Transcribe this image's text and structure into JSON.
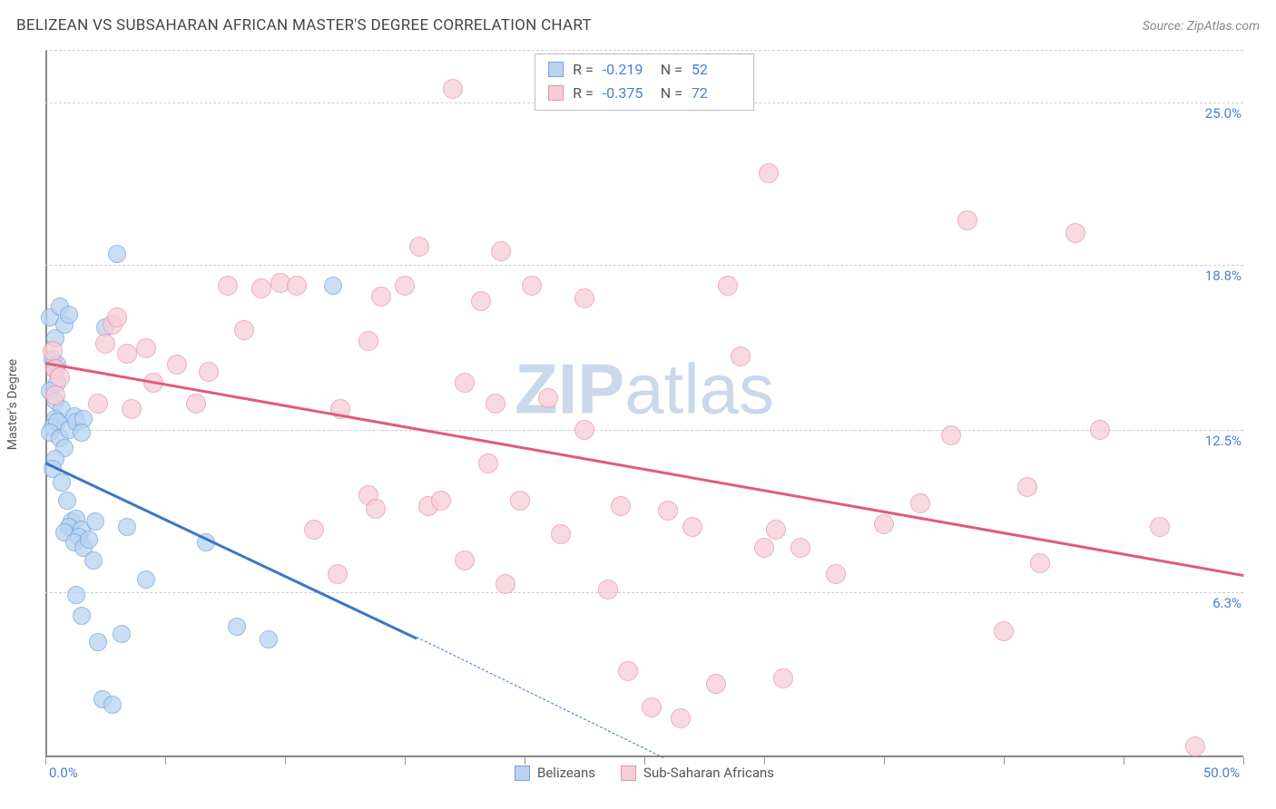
{
  "header": {
    "title": "BELIZEAN VS SUBSAHARAN AFRICAN MASTER'S DEGREE CORRELATION CHART",
    "source_prefix": "Source: ",
    "source_name": "ZipAtlas.com"
  },
  "y_axis": {
    "label": "Master's Degree"
  },
  "watermark": {
    "zip": "ZIP",
    "atlas": "atlas"
  },
  "chart": {
    "type": "scatter",
    "background_color": "#ffffff",
    "grid_color": "#cccccc",
    "axis_color": "#888888",
    "tick_label_color": "#4a7dd4",
    "xlim": [
      0,
      50
    ],
    "ylim": [
      0,
      27
    ],
    "x_ticks": [
      0,
      5,
      10,
      15,
      20,
      25,
      30,
      35,
      40,
      45,
      50
    ],
    "x_tick_labels": {
      "min": "0.0%",
      "max": "50.0%"
    },
    "y_gridlines": [
      {
        "v": 6.3,
        "label": "6.3%"
      },
      {
        "v": 12.5,
        "label": "12.5%"
      },
      {
        "v": 18.8,
        "label": "18.8%"
      },
      {
        "v": 25.0,
        "label": "25.0%"
      }
    ],
    "y_baseline": 0
  },
  "series": [
    {
      "key": "belizeans",
      "label": "Belizeans",
      "fill": "#b9d3f0",
      "stroke": "#6fa6e3",
      "marker_radius": 10,
      "marker_opacity": 0.75,
      "trend": {
        "color": "#3a76c8",
        "width": 2.5,
        "x1": 0,
        "y1": 11.3,
        "x2": 15.5,
        "y2": 4.6,
        "dash_ext_x": 25.8,
        "dash_ext_y": 0
      },
      "stats": {
        "R": "-0.219",
        "N": "52"
      },
      "points": [
        [
          0.2,
          16.8
        ],
        [
          0.4,
          16.0
        ],
        [
          0.6,
          17.2
        ],
        [
          0.8,
          16.5
        ],
        [
          0.3,
          15.2
        ],
        [
          0.4,
          14.8
        ],
        [
          0.5,
          15.0
        ],
        [
          0.5,
          14.3
        ],
        [
          0.2,
          14.0
        ],
        [
          0.4,
          13.6
        ],
        [
          0.7,
          13.3
        ],
        [
          0.4,
          12.9
        ],
        [
          0.3,
          12.6
        ],
        [
          0.5,
          12.8
        ],
        [
          0.2,
          12.4
        ],
        [
          0.6,
          12.2
        ],
        [
          1.0,
          12.5
        ],
        [
          1.2,
          13.0
        ],
        [
          1.3,
          12.8
        ],
        [
          1.6,
          12.9
        ],
        [
          1.5,
          12.4
        ],
        [
          0.8,
          11.8
        ],
        [
          0.4,
          11.4
        ],
        [
          0.3,
          11.0
        ],
        [
          0.7,
          10.5
        ],
        [
          0.9,
          9.8
        ],
        [
          1.1,
          9.0
        ],
        [
          1.3,
          9.1
        ],
        [
          1.0,
          8.8
        ],
        [
          0.8,
          8.6
        ],
        [
          1.5,
          8.7
        ],
        [
          1.4,
          8.4
        ],
        [
          1.2,
          8.2
        ],
        [
          1.6,
          8.0
        ],
        [
          1.8,
          8.3
        ],
        [
          2.1,
          9.0
        ],
        [
          3.4,
          8.8
        ],
        [
          2.0,
          7.5
        ],
        [
          4.2,
          6.8
        ],
        [
          1.3,
          6.2
        ],
        [
          1.5,
          5.4
        ],
        [
          2.2,
          4.4
        ],
        [
          8.0,
          5.0
        ],
        [
          6.7,
          8.2
        ],
        [
          3.0,
          19.2
        ],
        [
          2.5,
          16.4
        ],
        [
          2.4,
          2.2
        ],
        [
          2.8,
          2.0
        ],
        [
          3.2,
          4.7
        ],
        [
          9.3,
          4.5
        ],
        [
          12.0,
          18.0
        ],
        [
          1.0,
          16.9
        ]
      ]
    },
    {
      "key": "subsaharan",
      "label": "Sub-Saharan Africans",
      "fill": "#f7cdd7",
      "stroke": "#e693a7",
      "marker_radius": 11,
      "marker_opacity": 0.75,
      "trend": {
        "color": "#e15a7a",
        "width": 2.5,
        "x1": 0,
        "y1": 15.1,
        "x2": 50,
        "y2": 7.0
      },
      "stats": {
        "R": "-0.375",
        "N": "72"
      },
      "points": [
        [
          0.3,
          15.5
        ],
        [
          0.4,
          14.8
        ],
        [
          0.6,
          14.5
        ],
        [
          0.4,
          13.8
        ],
        [
          2.8,
          16.5
        ],
        [
          2.5,
          15.8
        ],
        [
          3.4,
          15.4
        ],
        [
          3.0,
          16.8
        ],
        [
          2.2,
          13.5
        ],
        [
          3.6,
          13.3
        ],
        [
          4.5,
          14.3
        ],
        [
          4.2,
          15.6
        ],
        [
          5.5,
          15.0
        ],
        [
          6.3,
          13.5
        ],
        [
          6.8,
          14.7
        ],
        [
          7.6,
          18.0
        ],
        [
          8.3,
          16.3
        ],
        [
          9.0,
          17.9
        ],
        [
          9.8,
          18.1
        ],
        [
          10.5,
          18.0
        ],
        [
          12.3,
          13.3
        ],
        [
          13.5,
          15.9
        ],
        [
          14.0,
          17.6
        ],
        [
          15.0,
          18.0
        ],
        [
          15.6,
          19.5
        ],
        [
          17.0,
          25.5
        ],
        [
          18.2,
          17.4
        ],
        [
          19.0,
          19.3
        ],
        [
          20.3,
          18.0
        ],
        [
          21.0,
          13.7
        ],
        [
          22.5,
          17.5
        ],
        [
          30.2,
          22.3
        ],
        [
          28.5,
          18.0
        ],
        [
          18.8,
          13.5
        ],
        [
          17.5,
          14.3
        ],
        [
          11.2,
          8.7
        ],
        [
          12.2,
          7.0
        ],
        [
          13.5,
          10.0
        ],
        [
          13.8,
          9.5
        ],
        [
          16.0,
          9.6
        ],
        [
          16.5,
          9.8
        ],
        [
          17.5,
          7.5
        ],
        [
          18.5,
          11.2
        ],
        [
          19.2,
          6.6
        ],
        [
          19.8,
          9.8
        ],
        [
          21.5,
          8.5
        ],
        [
          22.5,
          12.5
        ],
        [
          23.5,
          6.4
        ],
        [
          24.0,
          9.6
        ],
        [
          24.3,
          3.3
        ],
        [
          25.3,
          1.9
        ],
        [
          26.0,
          9.4
        ],
        [
          26.5,
          1.5
        ],
        [
          28.0,
          2.8
        ],
        [
          27.0,
          8.8
        ],
        [
          29.0,
          15.3
        ],
        [
          30.0,
          8.0
        ],
        [
          30.8,
          3.0
        ],
        [
          31.5,
          8.0
        ],
        [
          33.0,
          7.0
        ],
        [
          35.0,
          8.9
        ],
        [
          36.5,
          9.7
        ],
        [
          37.8,
          12.3
        ],
        [
          38.5,
          20.5
        ],
        [
          40.0,
          4.8
        ],
        [
          41.0,
          10.3
        ],
        [
          41.5,
          7.4
        ],
        [
          43.0,
          20.0
        ],
        [
          44.0,
          12.5
        ],
        [
          46.5,
          8.8
        ],
        [
          48.0,
          0.4
        ],
        [
          30.5,
          8.7
        ]
      ]
    }
  ],
  "legend": {
    "r_label": "R =",
    "n_label": "N ="
  }
}
